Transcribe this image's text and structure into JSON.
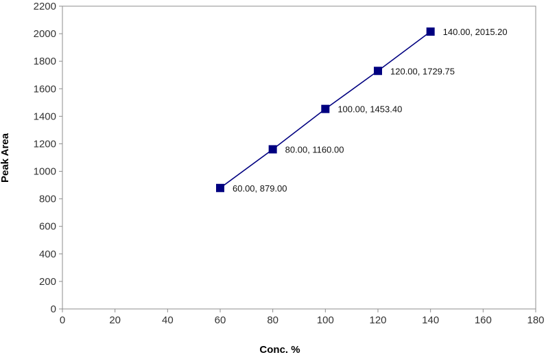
{
  "chart_data": {
    "type": "scatter",
    "title": "",
    "xlabel": "Conc. %",
    "ylabel": "Peak Area",
    "xlim": [
      0,
      180
    ],
    "ylim": [
      0,
      2200
    ],
    "xticks": [
      "0",
      "20",
      "40",
      "60",
      "80",
      "100",
      "120",
      "140",
      "160",
      "180"
    ],
    "yticks": [
      "0",
      "200",
      "400",
      "600",
      "800",
      "1000",
      "1200",
      "1400",
      "1600",
      "1800",
      "2000",
      "2200"
    ],
    "grid": false,
    "legend": "none",
    "connected": true,
    "marker": "square",
    "color": "#000080",
    "series": [
      {
        "points": [
          {
            "x": 60,
            "y": 879.0,
            "label": "60.00, 879.00"
          },
          {
            "x": 80,
            "y": 1160.0,
            "label": "80.00, 1160.00"
          },
          {
            "x": 100,
            "y": 1453.4,
            "label": "100.00, 1453.40"
          },
          {
            "x": 120,
            "y": 1729.75,
            "label": "120.00, 1729.75"
          },
          {
            "x": 140,
            "y": 2015.2,
            "label": "140.00, 2015.20"
          }
        ]
      }
    ]
  }
}
